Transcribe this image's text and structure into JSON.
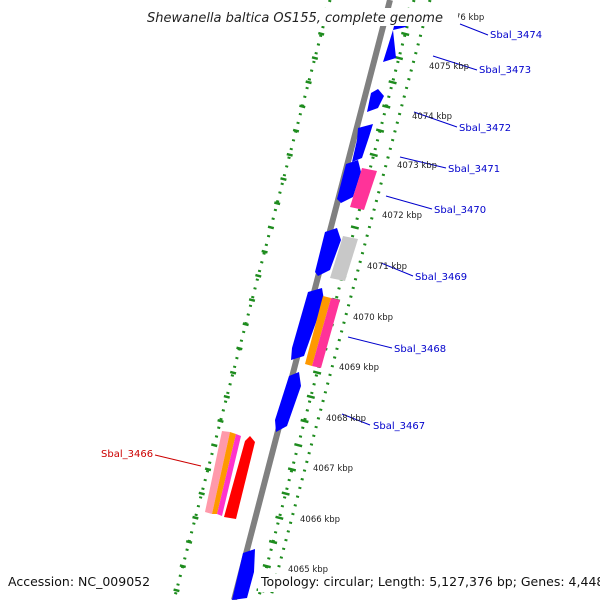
{
  "header": {
    "title": "Shewanella baltica OS155, complete genome"
  },
  "footer": {
    "accession": "Accession: NC_009052",
    "summary": "Topology: circular; Length: 5,127,376 bp; Genes: 4,448"
  },
  "colors": {
    "backbone": "#808080",
    "ruler_dots": "#1e8c1e",
    "forward_gene": "#0000ff",
    "reverse_gene": "#ff0000",
    "label_blue": "#0000cc",
    "label_red": "#cc0000",
    "magenta": "#ff3399",
    "orange": "#ff9900",
    "grey_gene": "#bbbbbb"
  },
  "kbp_ticks": [
    {
      "label": "76 kbp"
    },
    {
      "label": "4075 kbp"
    },
    {
      "label": "4074 kbp"
    },
    {
      "label": "4073 kbp"
    },
    {
      "label": "4072 kbp"
    },
    {
      "label": "4071 kbp"
    },
    {
      "label": "4070 kbp"
    },
    {
      "label": "4069 kbp"
    },
    {
      "label": "4068 kbp"
    },
    {
      "label": "4067 kbp"
    },
    {
      "label": "4066 kbp"
    },
    {
      "label": "4065 kbp"
    }
  ],
  "gene_labels": [
    {
      "label": "Sbal_3474",
      "color": "blue"
    },
    {
      "label": "Sbal_3473",
      "color": "blue"
    },
    {
      "label": "Sbal_3472",
      "color": "blue"
    },
    {
      "label": "Sbal_3471",
      "color": "blue"
    },
    {
      "label": "Sbal_3470",
      "color": "blue"
    },
    {
      "label": "Sbal_3469",
      "color": "blue"
    },
    {
      "label": "Sbal_3468",
      "color": "blue"
    },
    {
      "label": "Sbal_3467",
      "color": "blue"
    },
    {
      "label": "Sbal_3466",
      "color": "red"
    }
  ]
}
